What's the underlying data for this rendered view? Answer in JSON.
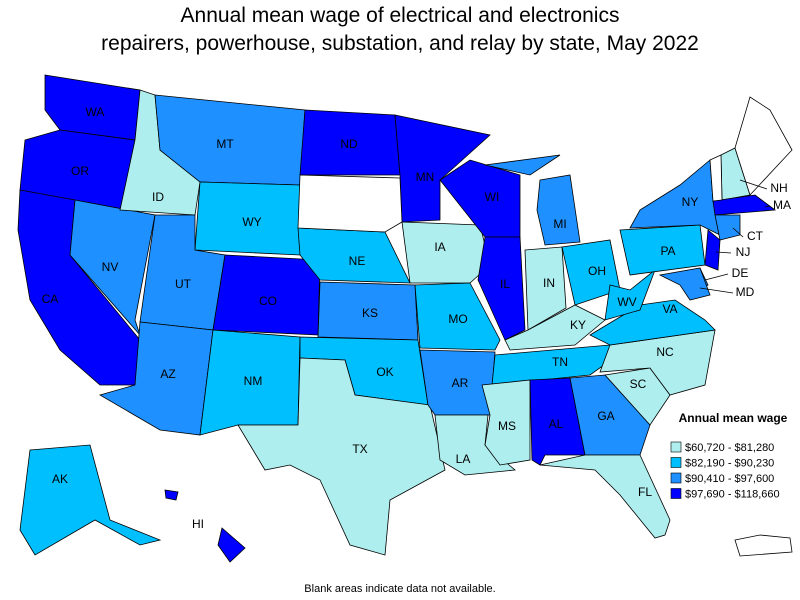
{
  "title_lines": [
    "Annual mean wage of electrical and electronics",
    "repairers, powerhouse, substation, and relay by state, May 2022"
  ],
  "legend": {
    "title": "Annual mean wage",
    "items": [
      {
        "label": "$60,720 - $81,280",
        "color": "#afeeee"
      },
      {
        "label": "$82,190 - $90,230",
        "color": "#00bfff"
      },
      {
        "label": "$90,410 - $97,600",
        "color": "#1e90ff"
      },
      {
        "label": "$97,690 - $118,660",
        "color": "#0000ff"
      }
    ]
  },
  "states": [
    {
      "abbr": "WA",
      "bin": 3
    },
    {
      "abbr": "OR",
      "bin": 3
    },
    {
      "abbr": "CA",
      "bin": 3
    },
    {
      "abbr": "NV",
      "bin": 2
    },
    {
      "abbr": "ID",
      "bin": 0
    },
    {
      "abbr": "MT",
      "bin": 2
    },
    {
      "abbr": "WY",
      "bin": 1
    },
    {
      "abbr": "UT",
      "bin": 2
    },
    {
      "abbr": "CO",
      "bin": 3
    },
    {
      "abbr": "AZ",
      "bin": 2
    },
    {
      "abbr": "NM",
      "bin": 1
    },
    {
      "abbr": "ND",
      "bin": 3
    },
    {
      "abbr": "NE",
      "bin": 1
    },
    {
      "abbr": "KS",
      "bin": 2
    },
    {
      "abbr": "OK",
      "bin": 1
    },
    {
      "abbr": "TX",
      "bin": 0
    },
    {
      "abbr": "MN",
      "bin": 3
    },
    {
      "abbr": "IA",
      "bin": 0
    },
    {
      "abbr": "MO",
      "bin": 1
    },
    {
      "abbr": "AR",
      "bin": 2
    },
    {
      "abbr": "LA",
      "bin": 0
    },
    {
      "abbr": "WI",
      "bin": 3
    },
    {
      "abbr": "IL",
      "bin": 3
    },
    {
      "abbr": "MI",
      "bin": 2
    },
    {
      "abbr": "IN",
      "bin": 0
    },
    {
      "abbr": "OH",
      "bin": 1
    },
    {
      "abbr": "KY",
      "bin": 0
    },
    {
      "abbr": "TN",
      "bin": 1
    },
    {
      "abbr": "MS",
      "bin": 0
    },
    {
      "abbr": "AL",
      "bin": 3
    },
    {
      "abbr": "GA",
      "bin": 2
    },
    {
      "abbr": "FL",
      "bin": 0
    },
    {
      "abbr": "SC",
      "bin": 0
    },
    {
      "abbr": "NC",
      "bin": 0
    },
    {
      "abbr": "VA",
      "bin": 1
    },
    {
      "abbr": "WV",
      "bin": 1
    },
    {
      "abbr": "PA",
      "bin": 1
    },
    {
      "abbr": "NY",
      "bin": 2
    },
    {
      "abbr": "NH",
      "bin": 0
    },
    {
      "abbr": "MA",
      "bin": 3
    },
    {
      "abbr": "CT",
      "bin": 2
    },
    {
      "abbr": "NJ",
      "bin": 3
    },
    {
      "abbr": "DE",
      "bin": 2
    },
    {
      "abbr": "MD",
      "bin": 2
    },
    {
      "abbr": "AK",
      "bin": 1
    },
    {
      "abbr": "HI",
      "bin": 3
    }
  ],
  "footnote": "Blank areas indicate data not available."
}
